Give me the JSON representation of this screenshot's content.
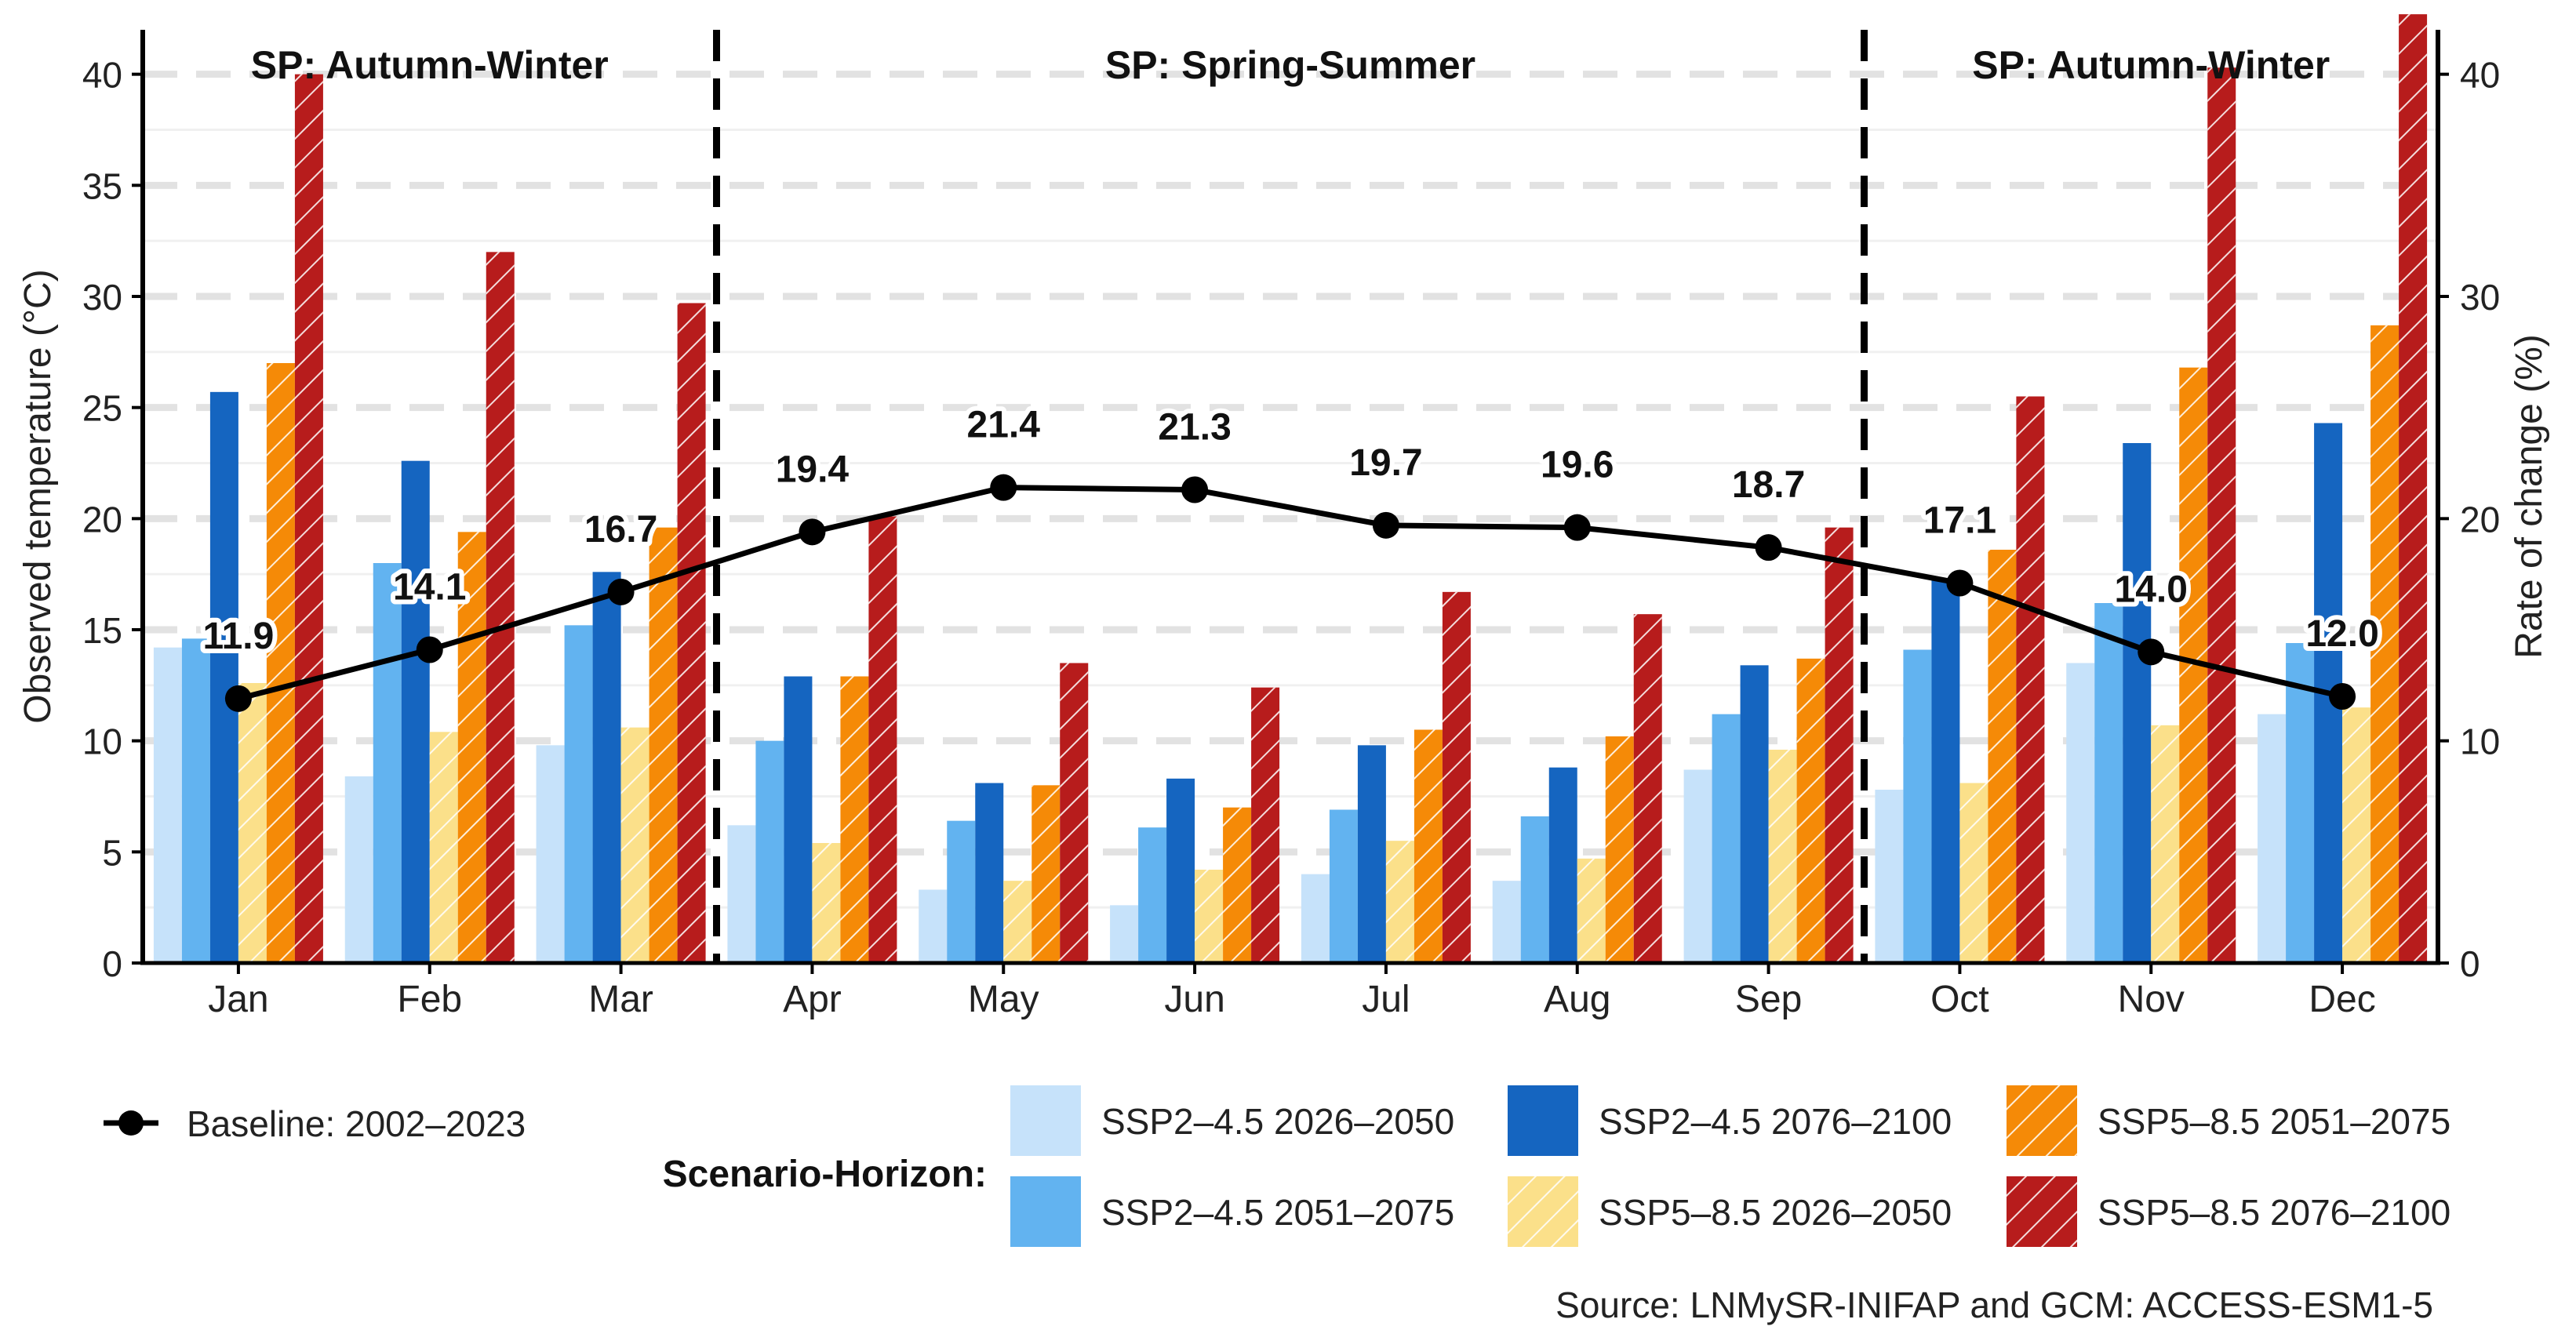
{
  "chart_data": {
    "type": "bar",
    "categories": [
      "Jan",
      "Feb",
      "Mar",
      "Apr",
      "May",
      "Jun",
      "Jul",
      "Aug",
      "Sep",
      "Oct",
      "Nov",
      "Dec"
    ],
    "ylabel_left": "Observed temperature (°C)",
    "ylabel_right": "Rate of change (%)",
    "ylim_left": [
      0,
      42
    ],
    "ylim_right": [
      0,
      42
    ],
    "yticks": [
      0,
      5,
      10,
      15,
      20,
      25,
      30,
      35,
      40
    ],
    "yticks_right": [
      0,
      10,
      20,
      30,
      40
    ],
    "period_labels": [
      {
        "label": "SP: Autumn-Winter",
        "start": 0,
        "end": 3
      },
      {
        "label": "SP: Spring-Summer",
        "start": 3,
        "end": 9
      },
      {
        "label": "SP: Autumn-Winter",
        "start": 9,
        "end": 12
      }
    ],
    "baseline": {
      "name": "Baseline: 2002–2023",
      "values": [
        11.9,
        14.1,
        16.7,
        19.4,
        21.4,
        21.3,
        19.7,
        19.6,
        18.7,
        17.1,
        14.0,
        12.0
      ]
    },
    "series": [
      {
        "name": "SSP2–4.5 2026–2050",
        "color": "#c6e2fa",
        "hatch": false,
        "values": [
          14.2,
          8.4,
          9.8,
          6.2,
          3.3,
          2.6,
          4.0,
          3.7,
          8.7,
          7.8,
          13.5,
          11.2
        ]
      },
      {
        "name": "SSP2–4.5 2051–2075",
        "color": "#62b3f0",
        "hatch": false,
        "values": [
          14.6,
          18.0,
          15.2,
          10.0,
          6.4,
          6.1,
          6.9,
          6.6,
          11.2,
          14.1,
          16.2,
          14.4
        ]
      },
      {
        "name": "SSP2–4.5 2076–2100",
        "color": "#1565c0",
        "hatch": false,
        "values": [
          25.7,
          22.6,
          17.6,
          12.9,
          8.1,
          8.3,
          9.8,
          8.8,
          13.4,
          17.3,
          23.4,
          24.3
        ]
      },
      {
        "name": "SSP5–8.5 2026–2050",
        "color": "#fbe08a",
        "hatch": true,
        "values": [
          12.6,
          10.4,
          10.6,
          5.4,
          3.7,
          4.2,
          5.5,
          4.7,
          9.6,
          8.1,
          10.7,
          11.5
        ]
      },
      {
        "name": "SSP5–8.5 2051–2075",
        "color": "#f58a07",
        "hatch": true,
        "values": [
          27.0,
          19.4,
          19.6,
          12.9,
          8.0,
          7.0,
          10.5,
          10.2,
          13.7,
          18.6,
          26.8,
          28.7
        ]
      },
      {
        "name": "SSP5–8.5 2076–2100",
        "color": "#b71c1c",
        "hatch": true,
        "values": [
          40.0,
          32.0,
          29.7,
          20.1,
          13.5,
          12.4,
          16.7,
          15.7,
          19.6,
          25.5,
          40.3,
          42.7
        ]
      }
    ],
    "legend_title": "Scenario-Horizon:",
    "source": "Source: LNMySR-INIFAP and GCM: ACCESS-ESM1-5"
  }
}
